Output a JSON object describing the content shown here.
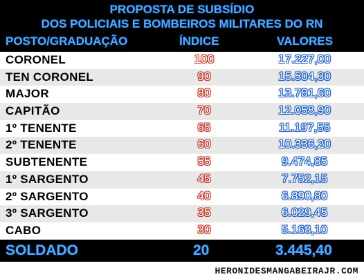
{
  "title_line1": "PROPOSTA DE SUBSÍDIO",
  "title_line2": "DOS POLICIAIS E BOMBEIROS MILITARES DO RN",
  "columns": {
    "rank": "POSTO/GRADUAÇÃO",
    "index": "ÍNDICE",
    "value": "VALORES"
  },
  "rows": [
    {
      "rank": "CORONEL",
      "index": "100",
      "value": "17.227,00"
    },
    {
      "rank": "TEN CORONEL",
      "index": "90",
      "value": "15.504,30"
    },
    {
      "rank": "MAJOR",
      "index": "80",
      "value": "13.781,60"
    },
    {
      "rank": "CAPITÃO",
      "index": "70",
      "value": "12.058,90"
    },
    {
      "rank": "1º TENENTE",
      "index": "65",
      "value": "11.197,55"
    },
    {
      "rank": "2º TENENTE",
      "index": "60",
      "value": "10.336,20"
    },
    {
      "rank": "SUBTENENTE",
      "index": "55",
      "value": "9.474,85"
    },
    {
      "rank": "1º SARGENTO",
      "index": "45",
      "value": "7.752,15"
    },
    {
      "rank": "2º SARGENTO",
      "index": "40",
      "value": "6.890,80"
    },
    {
      "rank": "3º SARGENTO",
      "index": "35",
      "value": "6.029,45"
    },
    {
      "rank": "CABO",
      "index": "30",
      "value": "5.168,10"
    }
  ],
  "highlight_row": {
    "rank": "SOLDADO",
    "index": "20",
    "value": "3.445,40"
  },
  "watermark": "HERONIDESMANGABEIRAJR.COM",
  "colors": {
    "header_bg": "#000000",
    "header_text": "#55aaff",
    "index_outline": "#c0392b",
    "value_outline": "#1f5fbf"
  }
}
